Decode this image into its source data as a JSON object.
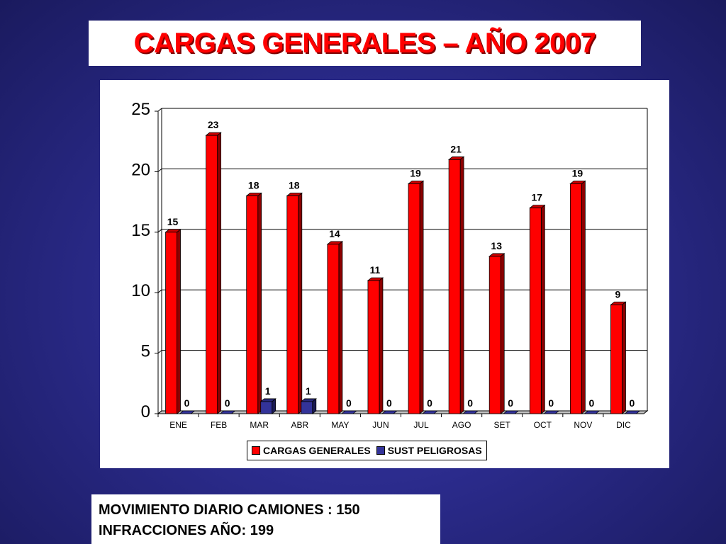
{
  "slide": {
    "title": "CARGAS GENERALES – AÑO 2007",
    "info_lines": [
      "MOVIMIENTO DIARIO CAMIONES : 150",
      "INFRACCIONES AÑO: 199"
    ]
  },
  "chart_data": {
    "type": "bar",
    "title": "",
    "xlabel": "",
    "ylabel": "",
    "categories": [
      "ENE",
      "FEB",
      "MAR",
      "ABR",
      "MAY",
      "JUN",
      "JUL",
      "AGO",
      "SET",
      "OCT",
      "NOV",
      "DIC"
    ],
    "series": [
      {
        "name": "CARGAS GENERALES",
        "color": "#ff0000",
        "values": [
          15,
          23,
          18,
          18,
          14,
          11,
          19,
          21,
          13,
          17,
          19,
          9
        ]
      },
      {
        "name": "SUST PELIGROSAS",
        "color": "#333399",
        "values": [
          0,
          0,
          1,
          1,
          0,
          0,
          0,
          0,
          0,
          0,
          0,
          0
        ]
      }
    ],
    "ylim": [
      0,
      25
    ],
    "yticks": [
      0,
      5,
      10,
      15,
      20,
      25
    ],
    "grid": true,
    "legend": "bottom",
    "three_d": true,
    "data_labels": true
  }
}
